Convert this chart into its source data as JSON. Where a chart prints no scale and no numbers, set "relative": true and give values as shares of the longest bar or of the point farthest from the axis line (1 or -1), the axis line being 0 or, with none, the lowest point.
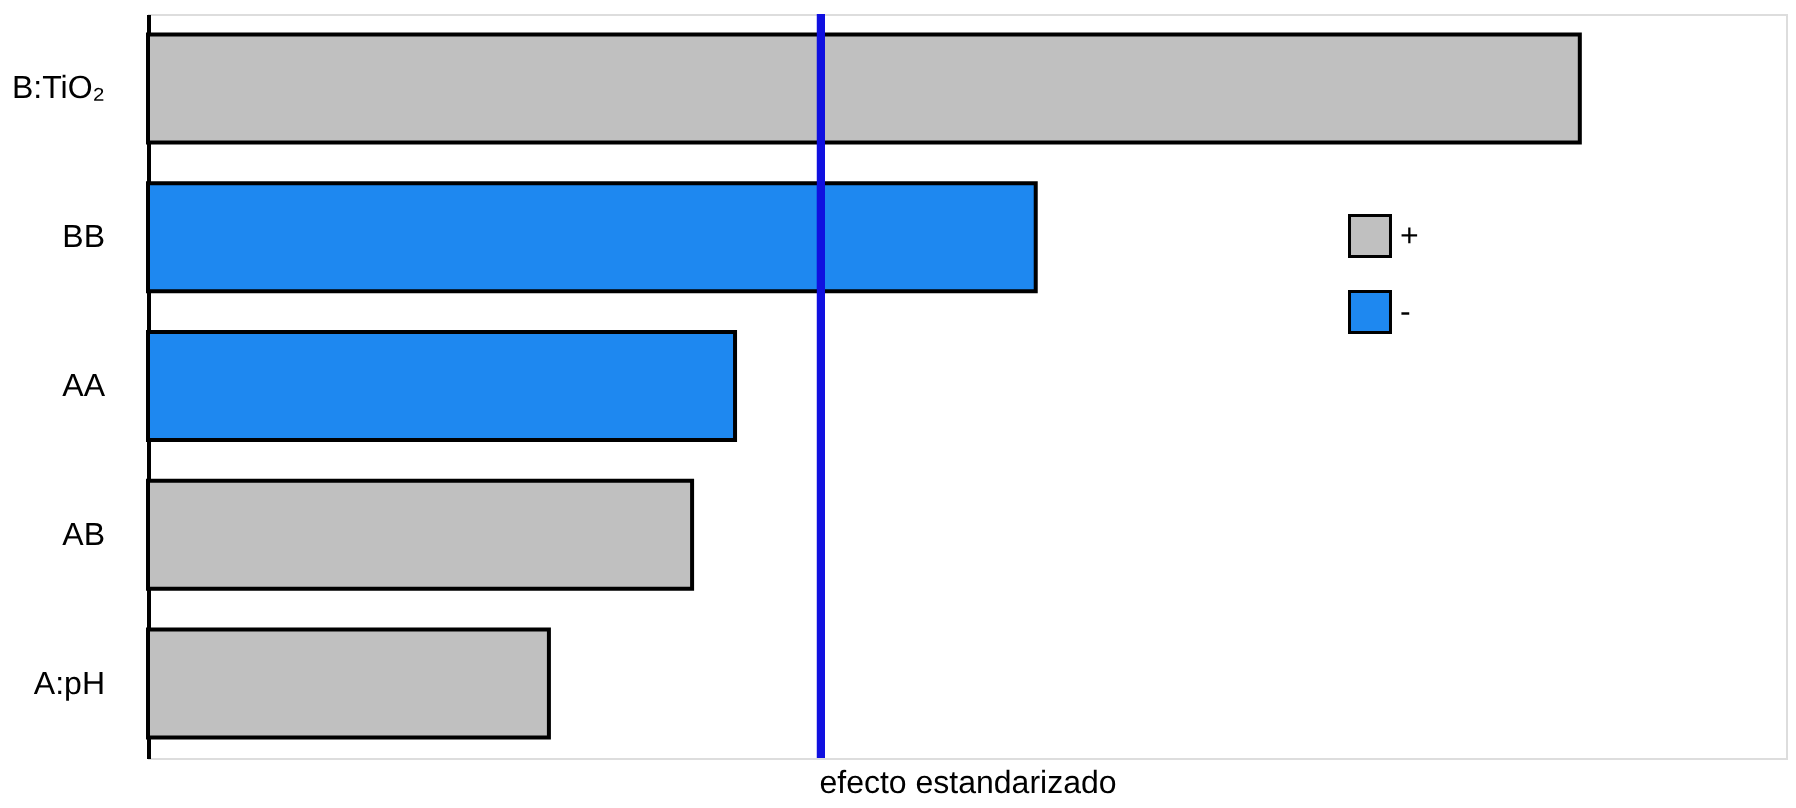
{
  "chart_data": {
    "type": "bar",
    "orientation": "horizontal",
    "relative": true,
    "xlabel": "efecto estandarizado",
    "categories": [
      "B:TiO₂",
      "BB",
      "AA",
      "AB",
      "A:pH"
    ],
    "series": [
      {
        "name": "+",
        "color": "#c0c0c0",
        "values": [
          1,
          null,
          null,
          0.38,
          0.28
        ]
      },
      {
        "name": "-",
        "color": "#1e88f0",
        "values": [
          null,
          0.62,
          0.41,
          null,
          null
        ]
      }
    ],
    "ref_lines": [
      {
        "axis": "x",
        "value": 0.47,
        "color": "#1010e0"
      }
    ],
    "legend": "right"
  }
}
